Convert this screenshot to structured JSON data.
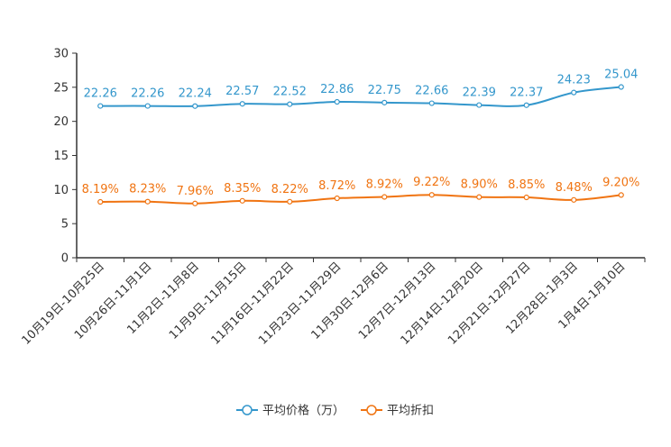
{
  "chart_data": {
    "type": "line",
    "title": "",
    "xlabel": "",
    "ylabel": "",
    "ylim": [
      0,
      30
    ],
    "yticks": [
      0,
      5,
      10,
      15,
      20,
      25,
      30
    ],
    "categories": [
      "10月19日-10月25日",
      "10月26日-11月1日",
      "11月2日-11月8日",
      "11月9日-11月15日",
      "11月16日-11月22日",
      "11月23日-11月29日",
      "11月30日-12月6日",
      "12月7日-12月13日",
      "12月14日-12月20日",
      "12月21日-12月27日",
      "12月28日-1月3日",
      "1月4日-1月10日"
    ],
    "series": [
      {
        "name": "平均价格（万）",
        "color": "#3497cc",
        "values": [
          22.26,
          22.26,
          22.24,
          22.57,
          22.52,
          22.86,
          22.75,
          22.66,
          22.39,
          22.37,
          24.23,
          25.04
        ],
        "labels": [
          "22.26",
          "22.26",
          "22.24",
          "22.57",
          "22.52",
          "22.86",
          "22.75",
          "22.66",
          "22.39",
          "22.37",
          "24.23",
          "25.04"
        ]
      },
      {
        "name": "平均折扣",
        "color": "#f07412",
        "values": [
          8.19,
          8.23,
          7.96,
          8.35,
          8.22,
          8.72,
          8.92,
          9.22,
          8.9,
          8.85,
          8.48,
          9.2
        ],
        "labels": [
          "8.19%",
          "8.23%",
          "7.96%",
          "8.35%",
          "8.22%",
          "8.72%",
          "8.92%",
          "9.22%",
          "8.90%",
          "8.85%",
          "8.48%",
          "9.20%"
        ]
      }
    ],
    "legend_position": "bottom-center"
  }
}
